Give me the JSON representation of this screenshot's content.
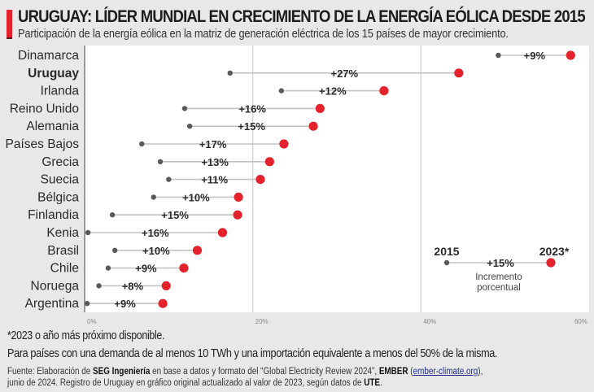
{
  "header": {
    "title": "URUGUAY: LÍDER MUNDIAL EN CRECIMIENTO DE LA ENERGÍA EÓLICA DESDE 2015",
    "subtitle": "Participación de la energía eólica en la matriz de generación eléctrica de los 15 países de mayor crecimiento.",
    "accent_color": "#e4222b"
  },
  "chart_data": {
    "type": "dumbbell",
    "title": "URUGUAY: LÍDER MUNDIAL EN CRECIMIENTO DE LA ENERGÍA EÓLICA DESDE 2015",
    "xlabel": "",
    "ylabel": "",
    "xlim": [
      0,
      60
    ],
    "x_ticks": [
      0,
      20,
      40,
      60
    ],
    "x_tick_labels": [
      "0%",
      "20%",
      "40%",
      "60%"
    ],
    "grid": true,
    "highlight_category": "Uruguay",
    "series_names": [
      "2015",
      "2023*"
    ],
    "series_colors": {
      "2015": "#5a5a5a",
      "2023*": "#e4222b"
    },
    "categories": [
      "Dinamarca",
      "Uruguay",
      "Irlanda",
      "Reino Unido",
      "Alemania",
      "Países Bajos",
      "Grecia",
      "Suecia",
      "Bélgica",
      "Finlandia",
      "Kenia",
      "Brasil",
      "Chile",
      "Noruega",
      "Argentina"
    ],
    "series": [
      {
        "name": "2015",
        "values": [
          49.2,
          17.3,
          23.4,
          11.9,
          12.5,
          6.8,
          9.0,
          10.0,
          8.2,
          3.3,
          0.4,
          3.6,
          2.8,
          1.7,
          0.3
        ]
      },
      {
        "name": "2023*",
        "values": [
          57.8,
          44.5,
          35.6,
          28.0,
          27.2,
          23.7,
          22.0,
          20.9,
          18.3,
          18.2,
          16.4,
          13.4,
          11.8,
          9.7,
          9.3
        ]
      }
    ],
    "increase_labels": [
      "+9%",
      "+27%",
      "+12%",
      "+16%",
      "+15%",
      "+17%",
      "+13%",
      "+11%",
      "+10%",
      "+15%",
      "+16%",
      "+10%",
      "+9%",
      "+8%",
      "+9%"
    ],
    "legend": {
      "placement": "bottom-right",
      "start_label": "2015",
      "end_label": "2023*",
      "example_increase": "+15%",
      "caption_line1": "Incremento",
      "caption_line2": "porcentual"
    }
  },
  "footer": {
    "note1": "*2023 o año más próximo disponible.",
    "note2": "Para países con una demanda de al menos 10 TWh y una importación equivalente a menos del 50% de la misma.",
    "source_prefix": "Fuente: Elaboración de ",
    "source_org1": "SEG Ingeniería",
    "source_mid1": " en base a datos y formato del “Global Electricity Review 2024”, ",
    "source_org2": "EMBER",
    "source_open": " (",
    "source_link": "ember-climate.org",
    "source_close": "),",
    "source_line2_prefix": "junio de 2024. Registro de Uruguay en gráfico original actualizado al valor de 2023, según datos de ",
    "source_org3": "UTE",
    "source_end": "."
  }
}
